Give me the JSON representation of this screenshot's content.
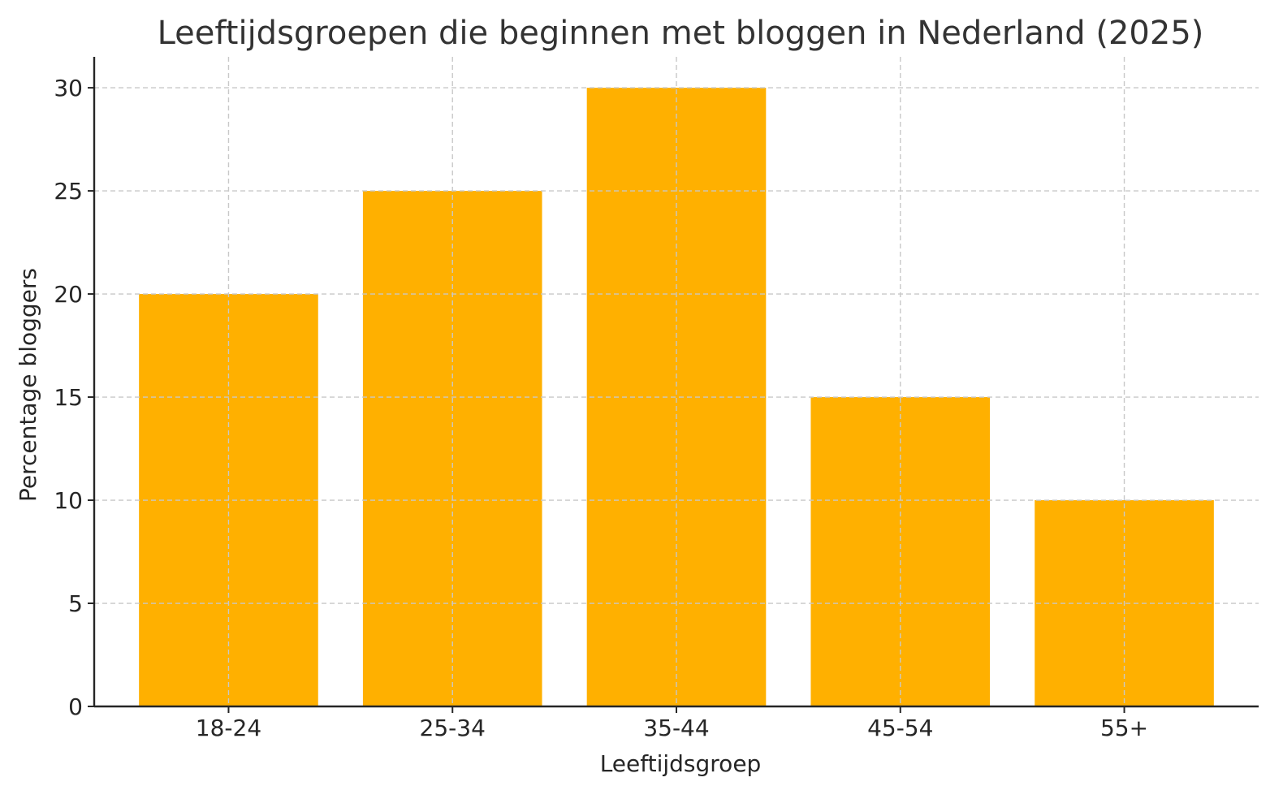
{
  "chart_data": {
    "type": "bar",
    "title": "Leeftijdsgroepen die beginnen met bloggen in Nederland (2025)",
    "xlabel": "Leeftijdsgroep",
    "ylabel": "Percentage bloggers",
    "categories": [
      "18-24",
      "25-34",
      "35-44",
      "45-54",
      "55+"
    ],
    "values": [
      20,
      25,
      30,
      15,
      10
    ],
    "ylim": [
      0,
      31.5
    ],
    "yticks": [
      0,
      5,
      10,
      15,
      20,
      25,
      30
    ],
    "grid": true,
    "legend": "none",
    "bar_color": "#FFB000"
  }
}
